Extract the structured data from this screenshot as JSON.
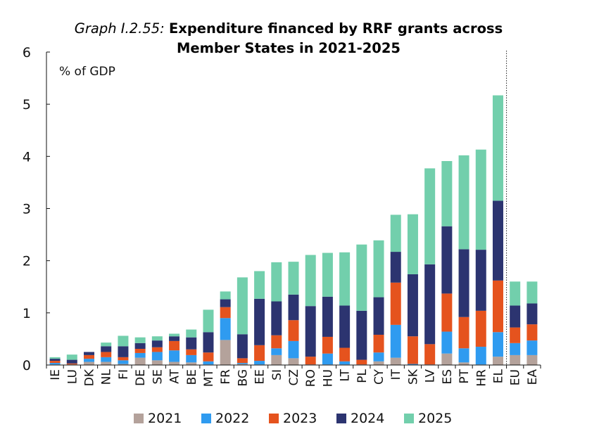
{
  "chart_data": {
    "type": "bar",
    "stacked": true,
    "title_prefix": "Graph I.2.55:",
    "title_line1": "Expenditure financed by RRF grants across",
    "title_line2": "Member States in 2021-2025",
    "ylabel": "% of GDP",
    "ylim": [
      0,
      6
    ],
    "yticks": [
      0,
      1,
      2,
      3,
      4,
      5,
      6
    ],
    "grid": false,
    "legend_position": "bottom",
    "categories": [
      "IE",
      "LU",
      "DK",
      "NL",
      "FI",
      "DE",
      "SE",
      "AT",
      "BE",
      "MT",
      "FR",
      "BG",
      "EE",
      "SI",
      "CZ",
      "RO",
      "HU",
      "LT",
      "PL",
      "CY",
      "IT",
      "SK",
      "LV",
      "ES",
      "PT",
      "HR",
      "EL",
      "EU",
      "EA"
    ],
    "separator_after": "EL",
    "series": [
      {
        "name": "2021",
        "color": "#b4a29b",
        "values": [
          0.01,
          0.0,
          0.06,
          0.06,
          0.02,
          0.14,
          0.09,
          0.06,
          0.05,
          0.01,
          0.48,
          0.02,
          0.01,
          0.19,
          0.13,
          0.0,
          0.01,
          0.01,
          0.0,
          0.07,
          0.14,
          0.0,
          0.0,
          0.22,
          0.05,
          0.01,
          0.16,
          0.19,
          0.19
        ]
      },
      {
        "name": "2022",
        "color": "#2f9bf0",
        "values": [
          0.03,
          0.01,
          0.06,
          0.09,
          0.07,
          0.09,
          0.16,
          0.22,
          0.14,
          0.06,
          0.42,
          0.02,
          0.07,
          0.13,
          0.33,
          0.01,
          0.21,
          0.06,
          0.01,
          0.17,
          0.63,
          0.02,
          0.01,
          0.42,
          0.27,
          0.34,
          0.47,
          0.23,
          0.28
        ]
      },
      {
        "name": "2023",
        "color": "#e5531e",
        "values": [
          0.04,
          0.02,
          0.07,
          0.1,
          0.06,
          0.08,
          0.09,
          0.18,
          0.11,
          0.17,
          0.21,
          0.09,
          0.3,
          0.25,
          0.4,
          0.15,
          0.32,
          0.26,
          0.09,
          0.34,
          0.81,
          0.53,
          0.39,
          0.73,
          0.6,
          0.69,
          0.99,
          0.3,
          0.31
        ]
      },
      {
        "name": "2024",
        "color": "#2c3470",
        "values": [
          0.04,
          0.07,
          0.06,
          0.11,
          0.21,
          0.11,
          0.13,
          0.09,
          0.23,
          0.39,
          0.15,
          0.46,
          0.89,
          0.65,
          0.49,
          0.97,
          0.77,
          0.81,
          0.94,
          0.72,
          0.59,
          1.19,
          1.53,
          1.29,
          1.3,
          1.17,
          1.53,
          0.42,
          0.4
        ]
      },
      {
        "name": "2025",
        "color": "#72cfac",
        "values": [
          0.03,
          0.1,
          0.0,
          0.07,
          0.2,
          0.11,
          0.08,
          0.05,
          0.15,
          0.43,
          0.15,
          1.09,
          0.53,
          0.75,
          0.63,
          0.98,
          0.84,
          1.02,
          1.27,
          1.09,
          0.71,
          1.15,
          1.84,
          1.25,
          1.8,
          1.92,
          2.02,
          0.46,
          0.42
        ]
      }
    ]
  }
}
